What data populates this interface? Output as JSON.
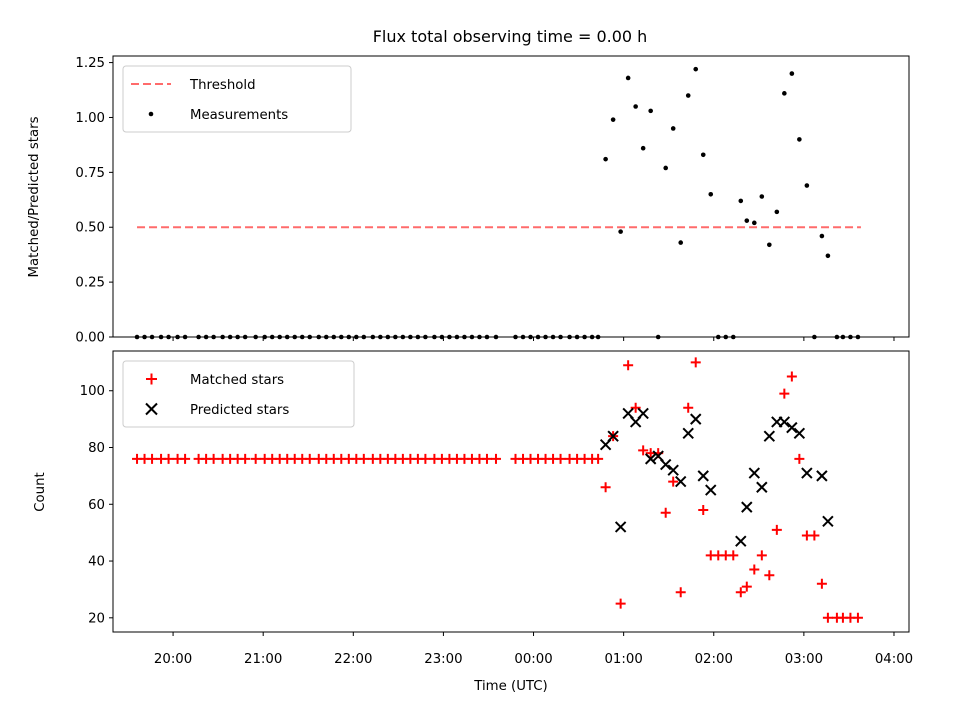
{
  "figure": {
    "title": "Flux total observing time = 0.00 h",
    "xlabel": "Time (UTC)"
  },
  "chart_data": [
    {
      "type": "scatter",
      "title": "Flux total observing time = 0.00 h",
      "ylabel": "Matched/Predicted stars",
      "xlim": [
        "19:20",
        "04:10"
      ],
      "ylim": [
        0,
        1.28
      ],
      "yticks": [
        "0.00",
        "0.25",
        "0.50",
        "0.75",
        "1.00",
        "1.25"
      ],
      "grid": false,
      "legend_position": "upper-left",
      "threshold": {
        "name": "Threshold",
        "value": 0.5,
        "x_start": "19:36",
        "x_end": "03:38",
        "color": "#ff6b6b",
        "style": "dashed"
      },
      "series": [
        {
          "name": "Measurements",
          "marker": "dot",
          "color": "#000000",
          "points": [
            [
              "19:36",
              0
            ],
            [
              "19:41",
              0
            ],
            [
              "19:46",
              0
            ],
            [
              "19:52",
              0
            ],
            [
              "19:57",
              0
            ],
            [
              "20:03",
              0
            ],
            [
              "20:08",
              0
            ],
            [
              "20:17",
              0
            ],
            [
              "20:22",
              0
            ],
            [
              "20:27",
              0
            ],
            [
              "20:33",
              0
            ],
            [
              "20:38",
              0
            ],
            [
              "20:43",
              0
            ],
            [
              "20:48",
              0
            ],
            [
              "20:55",
              0
            ],
            [
              "21:01",
              0
            ],
            [
              "21:06",
              0
            ],
            [
              "21:11",
              0
            ],
            [
              "21:16",
              0
            ],
            [
              "21:21",
              0
            ],
            [
              "21:26",
              0
            ],
            [
              "21:31",
              0
            ],
            [
              "21:37",
              0
            ],
            [
              "21:42",
              0
            ],
            [
              "21:47",
              0
            ],
            [
              "21:52",
              0
            ],
            [
              "21:57",
              0
            ],
            [
              "22:02",
              0
            ],
            [
              "22:07",
              0
            ],
            [
              "22:13",
              0
            ],
            [
              "22:18",
              0
            ],
            [
              "22:23",
              0
            ],
            [
              "22:28",
              0
            ],
            [
              "22:33",
              0
            ],
            [
              "22:38",
              0
            ],
            [
              "22:43",
              0
            ],
            [
              "22:48",
              0
            ],
            [
              "22:54",
              0
            ],
            [
              "22:59",
              0
            ],
            [
              "23:04",
              0
            ],
            [
              "23:09",
              0
            ],
            [
              "23:14",
              0
            ],
            [
              "23:19",
              0
            ],
            [
              "23:24",
              0
            ],
            [
              "23:29",
              0
            ],
            [
              "23:35",
              0
            ],
            [
              "23:48",
              0
            ],
            [
              "23:53",
              0
            ],
            [
              "23:58",
              0
            ],
            [
              "00:03",
              0
            ],
            [
              "00:08",
              0
            ],
            [
              "00:13",
              0
            ],
            [
              "00:18",
              0
            ],
            [
              "00:24",
              0
            ],
            [
              "00:29",
              0
            ],
            [
              "00:34",
              0
            ],
            [
              "00:39",
              0
            ],
            [
              "00:43",
              0
            ],
            [
              "00:48",
              0.81
            ],
            [
              "00:53",
              0.99
            ],
            [
              "00:58",
              0.48
            ],
            [
              "01:03",
              1.18
            ],
            [
              "01:08",
              1.05
            ],
            [
              "01:13",
              0.86
            ],
            [
              "01:18",
              1.03
            ],
            [
              "01:23",
              0
            ],
            [
              "01:28",
              0.77
            ],
            [
              "01:33",
              0.95
            ],
            [
              "01:38",
              0.43
            ],
            [
              "01:43",
              1.1
            ],
            [
              "01:48",
              1.22
            ],
            [
              "01:53",
              0.83
            ],
            [
              "01:58",
              0.65
            ],
            [
              "02:03",
              0
            ],
            [
              "02:08",
              0
            ],
            [
              "02:13",
              0
            ],
            [
              "02:18",
              0.62
            ],
            [
              "02:22",
              0.53
            ],
            [
              "02:27",
              0.52
            ],
            [
              "02:32",
              0.64
            ],
            [
              "02:37",
              0.42
            ],
            [
              "02:42",
              0.57
            ],
            [
              "02:47",
              1.11
            ],
            [
              "02:52",
              1.2
            ],
            [
              "02:57",
              0.9
            ],
            [
              "03:02",
              0.69
            ],
            [
              "03:07",
              0
            ],
            [
              "03:12",
              0.46
            ],
            [
              "03:16",
              0.37
            ],
            [
              "03:22",
              0
            ],
            [
              "03:26",
              0
            ],
            [
              "03:31",
              0
            ],
            [
              "03:36",
              0
            ]
          ]
        }
      ]
    },
    {
      "type": "scatter",
      "ylabel": "Count",
      "xlim": [
        "19:20",
        "04:10"
      ],
      "ylim": [
        15,
        114
      ],
      "yticks": [
        "20",
        "40",
        "60",
        "80",
        "100"
      ],
      "xticks": [
        "20:00",
        "21:00",
        "22:00",
        "23:00",
        "00:00",
        "01:00",
        "02:00",
        "03:00",
        "04:00"
      ],
      "grid": false,
      "legend_position": "upper-left",
      "series": [
        {
          "name": "Matched stars",
          "marker": "plus",
          "color": "#ff0000",
          "points": [
            [
              "19:36",
              76
            ],
            [
              "19:41",
              76
            ],
            [
              "19:46",
              76
            ],
            [
              "19:52",
              76
            ],
            [
              "19:57",
              76
            ],
            [
              "20:03",
              76
            ],
            [
              "20:08",
              76
            ],
            [
              "20:17",
              76
            ],
            [
              "20:22",
              76
            ],
            [
              "20:27",
              76
            ],
            [
              "20:33",
              76
            ],
            [
              "20:38",
              76
            ],
            [
              "20:43",
              76
            ],
            [
              "20:48",
              76
            ],
            [
              "20:55",
              76
            ],
            [
              "21:01",
              76
            ],
            [
              "21:06",
              76
            ],
            [
              "21:11",
              76
            ],
            [
              "21:16",
              76
            ],
            [
              "21:21",
              76
            ],
            [
              "21:26",
              76
            ],
            [
              "21:31",
              76
            ],
            [
              "21:37",
              76
            ],
            [
              "21:42",
              76
            ],
            [
              "21:47",
              76
            ],
            [
              "21:52",
              76
            ],
            [
              "21:57",
              76
            ],
            [
              "22:02",
              76
            ],
            [
              "22:07",
              76
            ],
            [
              "22:13",
              76
            ],
            [
              "22:18",
              76
            ],
            [
              "22:23",
              76
            ],
            [
              "22:28",
              76
            ],
            [
              "22:33",
              76
            ],
            [
              "22:38",
              76
            ],
            [
              "22:43",
              76
            ],
            [
              "22:48",
              76
            ],
            [
              "22:54",
              76
            ],
            [
              "22:59",
              76
            ],
            [
              "23:04",
              76
            ],
            [
              "23:09",
              76
            ],
            [
              "23:14",
              76
            ],
            [
              "23:19",
              76
            ],
            [
              "23:24",
              76
            ],
            [
              "23:29",
              76
            ],
            [
              "23:35",
              76
            ],
            [
              "23:48",
              76
            ],
            [
              "23:53",
              76
            ],
            [
              "23:58",
              76
            ],
            [
              "00:03",
              76
            ],
            [
              "00:08",
              76
            ],
            [
              "00:13",
              76
            ],
            [
              "00:18",
              76
            ],
            [
              "00:24",
              76
            ],
            [
              "00:29",
              76
            ],
            [
              "00:34",
              76
            ],
            [
              "00:39",
              76
            ],
            [
              "00:43",
              76
            ],
            [
              "00:48",
              66
            ],
            [
              "00:53",
              84
            ],
            [
              "00:58",
              25
            ],
            [
              "01:03",
              109
            ],
            [
              "01:08",
              94
            ],
            [
              "01:13",
              79
            ],
            [
              "01:18",
              78
            ],
            [
              "01:23",
              78
            ],
            [
              "01:28",
              57
            ],
            [
              "01:33",
              68
            ],
            [
              "01:38",
              29
            ],
            [
              "01:43",
              94
            ],
            [
              "01:48",
              110
            ],
            [
              "01:53",
              58
            ],
            [
              "01:58",
              42
            ],
            [
              "02:03",
              42
            ],
            [
              "02:08",
              42
            ],
            [
              "02:13",
              42
            ],
            [
              "02:18",
              29
            ],
            [
              "02:22",
              31
            ],
            [
              "02:27",
              37
            ],
            [
              "02:32",
              42
            ],
            [
              "02:37",
              35
            ],
            [
              "02:42",
              51
            ],
            [
              "02:47",
              99
            ],
            [
              "02:52",
              105
            ],
            [
              "02:57",
              76
            ],
            [
              "03:02",
              49
            ],
            [
              "03:07",
              49
            ],
            [
              "03:12",
              32
            ],
            [
              "03:16",
              20
            ],
            [
              "03:22",
              20
            ],
            [
              "03:26",
              20
            ],
            [
              "03:31",
              20
            ],
            [
              "03:36",
              20
            ]
          ]
        },
        {
          "name": "Predicted stars",
          "marker": "x",
          "color": "#000000",
          "points": [
            [
              "00:48",
              81
            ],
            [
              "00:53",
              84
            ],
            [
              "00:58",
              52
            ],
            [
              "01:03",
              92
            ],
            [
              "01:08",
              89
            ],
            [
              "01:13",
              92
            ],
            [
              "01:18",
              76
            ],
            [
              "01:23",
              77
            ],
            [
              "01:28",
              74
            ],
            [
              "01:33",
              72
            ],
            [
              "01:38",
              68
            ],
            [
              "01:43",
              85
            ],
            [
              "01:48",
              90
            ],
            [
              "01:53",
              70
            ],
            [
              "01:58",
              65
            ],
            [
              "02:18",
              47
            ],
            [
              "02:22",
              59
            ],
            [
              "02:27",
              71
            ],
            [
              "02:32",
              66
            ],
            [
              "02:37",
              84
            ],
            [
              "02:42",
              89
            ],
            [
              "02:47",
              89
            ],
            [
              "02:52",
              87
            ],
            [
              "02:57",
              85
            ],
            [
              "03:02",
              71
            ],
            [
              "03:12",
              70
            ],
            [
              "03:16",
              54
            ]
          ]
        }
      ]
    }
  ]
}
